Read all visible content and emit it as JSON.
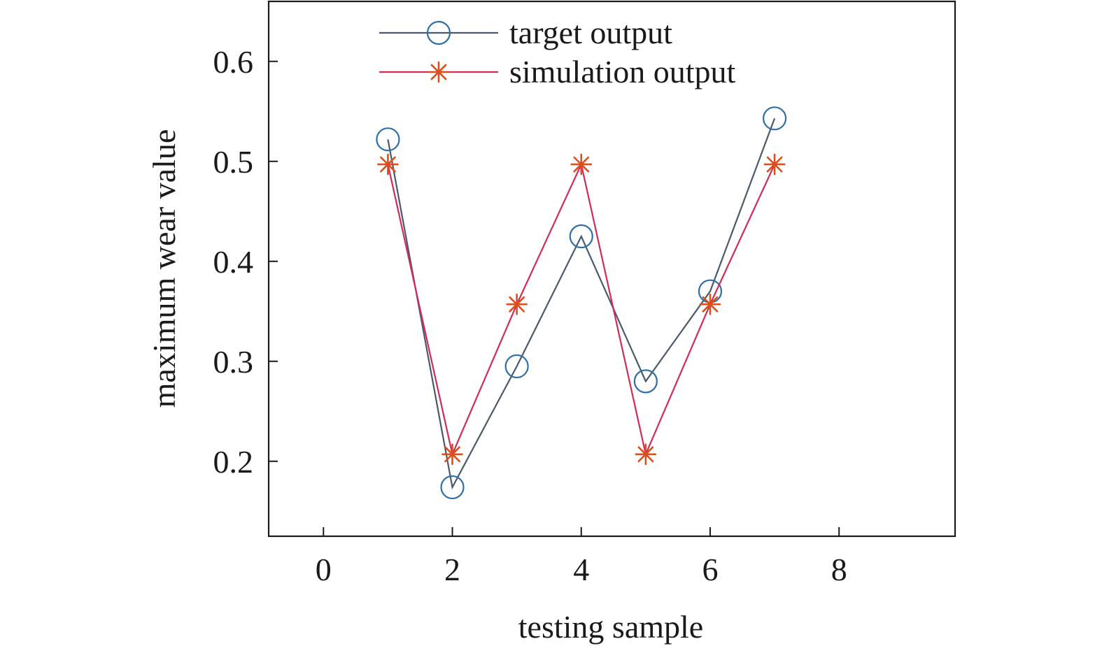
{
  "chart_data": {
    "type": "line",
    "xlabel": "testing sample",
    "ylabel": "maximum wear value",
    "xlim": [
      -0.85,
      9.8
    ],
    "ylim": [
      0.125,
      0.66
    ],
    "xticks": [
      0,
      2,
      4,
      6,
      8
    ],
    "xtick_labels": [
      "0",
      "2",
      "4",
      "6",
      "8"
    ],
    "yticks": [
      0.2,
      0.3,
      0.4,
      0.5,
      0.6
    ],
    "ytick_labels": [
      "0.2",
      "0.3",
      "0.4",
      "0.5",
      "0.6"
    ],
    "grid": false,
    "legend_position": "top",
    "series": [
      {
        "name": "target output",
        "marker": "circle",
        "line_color": "#4a5a6a",
        "marker_color": "#2e6fa8",
        "x": [
          1,
          2,
          3,
          4,
          5,
          6,
          7
        ],
        "y": [
          0.522,
          0.174,
          0.295,
          0.425,
          0.28,
          0.37,
          0.543
        ]
      },
      {
        "name": "simulation output",
        "marker": "asterisk",
        "line_color": "#d42a5a",
        "marker_color": "#d9501e",
        "x": [
          1,
          2,
          3,
          4,
          5,
          6,
          7
        ],
        "y": [
          0.497,
          0.207,
          0.357,
          0.497,
          0.207,
          0.357,
          0.497
        ]
      }
    ]
  }
}
